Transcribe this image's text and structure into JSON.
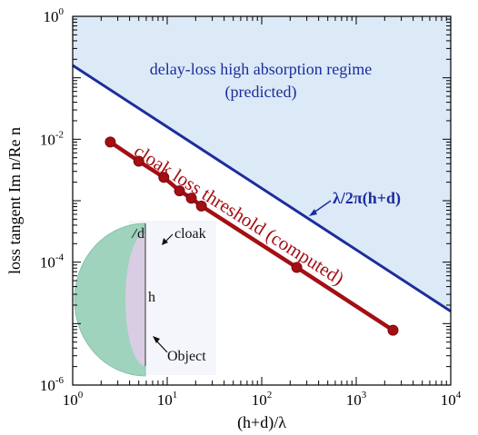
{
  "chart_data": {
    "type": "line",
    "scale": {
      "x": "log",
      "y": "log"
    },
    "xlim": [
      1,
      10000
    ],
    "ylim": [
      1e-06,
      1
    ],
    "xlabel": "(h+d)/λ",
    "ylabel": "loss tangent Im n/Re n",
    "x_ticks": [
      {
        "base": "10",
        "exp": "0",
        "value": 1
      },
      {
        "base": "10",
        "exp": "1",
        "value": 10
      },
      {
        "base": "10",
        "exp": "2",
        "value": 100
      },
      {
        "base": "10",
        "exp": "3",
        "value": 1000
      },
      {
        "base": "10",
        "exp": "4",
        "value": 10000
      }
    ],
    "y_ticks": [
      {
        "base": "10",
        "exp": "0",
        "value": 1
      },
      {
        "base": "10",
        "exp": "-2",
        "value": 0.01
      },
      {
        "base": "10",
        "exp": "-4",
        "value": 0.0001
      },
      {
        "base": "10",
        "exp": "-6",
        "value": 1e-06
      }
    ],
    "series": [
      {
        "label": "λ/2π(h+d)",
        "color": "#1c2d9c",
        "x": [
          1,
          10000
        ],
        "y": [
          0.159,
          1.59e-05
        ]
      },
      {
        "label": "cloak loss threshold (computed)",
        "color": "#a40f14",
        "marker": "circle",
        "x": [
          2.5,
          5,
          9.2,
          13.5,
          18,
          23,
          235,
          2450
        ],
        "y": [
          0.009,
          0.0044,
          0.0024,
          0.00145,
          0.0011,
          0.00082,
          8.2e-05,
          7.8e-06
        ]
      }
    ],
    "region": {
      "label": "delay-loss high absorption regime",
      "sublabel": "(predicted)",
      "fill": "#dce9f7"
    },
    "inset": {
      "labels": [
        "d",
        "h",
        "cloak",
        "Object"
      ],
      "cloak_color": "#9fd3bd",
      "object_color": "#d8cde3"
    }
  }
}
